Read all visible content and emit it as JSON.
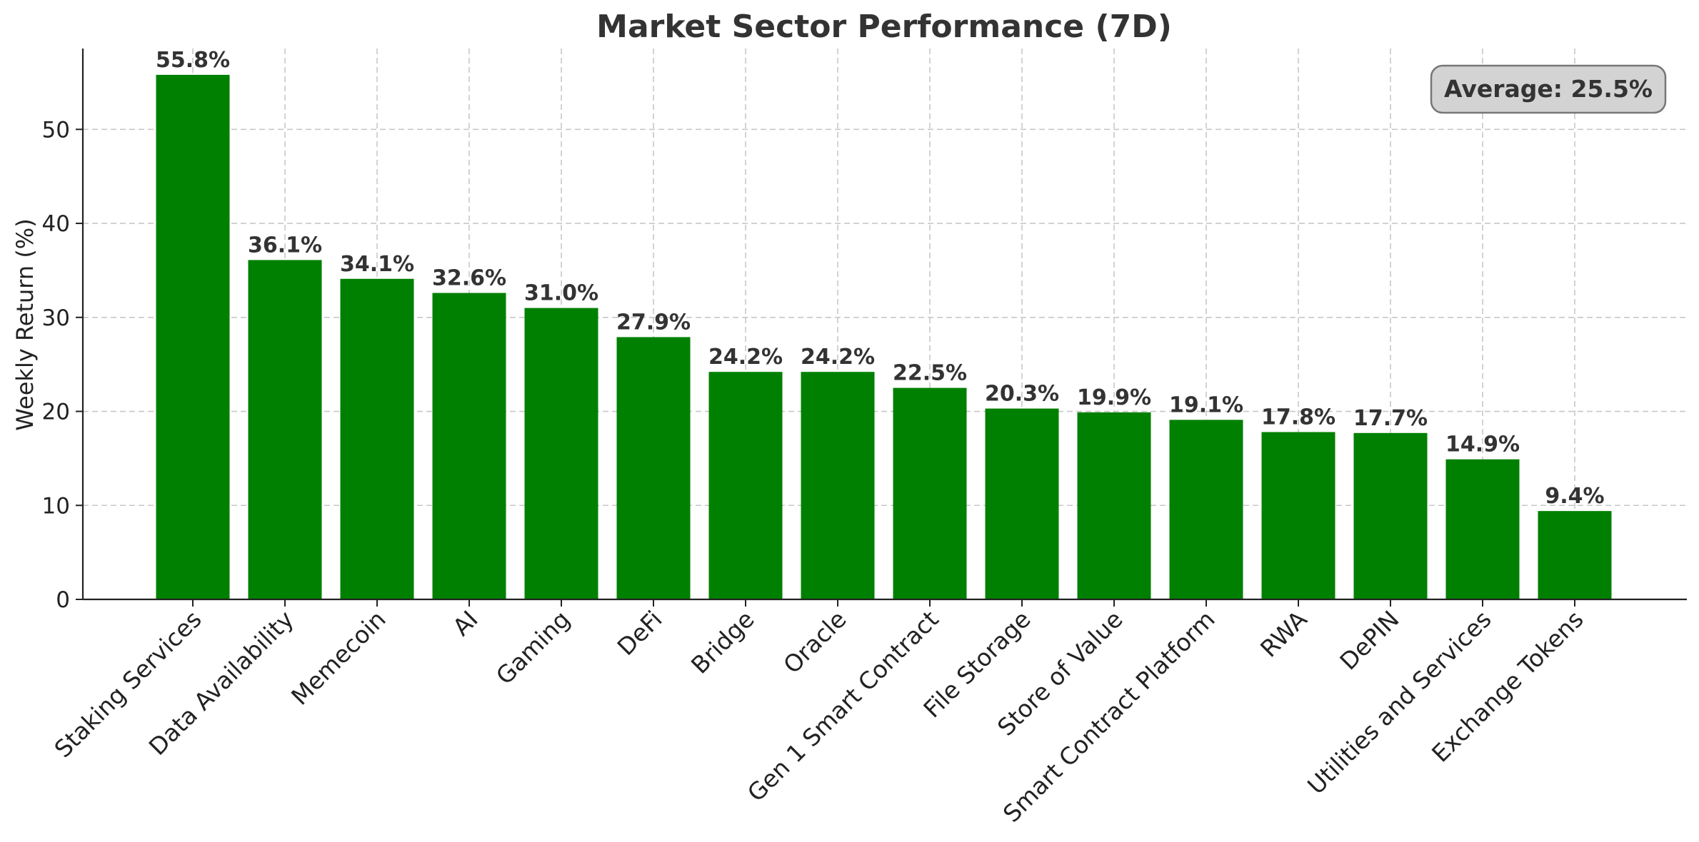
{
  "chart_data": {
    "type": "bar",
    "title": "Market Sector Performance (7D)",
    "xlabel": "",
    "ylabel": "Weekly Return (%)",
    "ylim": [
      0,
      58.6
    ],
    "yticks": [
      0,
      10,
      20,
      30,
      40,
      50
    ],
    "grid": true,
    "bar_color": "#008000",
    "categories": [
      "Staking Services",
      "Data Availability",
      "Memecoin",
      "AI",
      "Gaming",
      "DeFi",
      "Bridge",
      "Oracle",
      "Gen 1 Smart Contract",
      "File Storage",
      "Store of Value",
      "Smart Contract Platform",
      "RWA",
      "DePIN",
      "Utilities and Services",
      "Exchange Tokens"
    ],
    "values": [
      55.8,
      36.1,
      34.1,
      32.6,
      31.0,
      27.9,
      24.2,
      24.2,
      22.5,
      20.3,
      19.9,
      19.1,
      17.8,
      17.7,
      14.9,
      9.4
    ],
    "data_labels": [
      "55.8%",
      "36.1%",
      "34.1%",
      "32.6%",
      "31.0%",
      "27.9%",
      "24.2%",
      "24.2%",
      "22.5%",
      "20.3%",
      "19.9%",
      "19.1%",
      "17.8%",
      "17.7%",
      "14.9%",
      "9.4%"
    ],
    "annotation": {
      "text": "Average: 25.5%",
      "placement": "top-right"
    }
  }
}
